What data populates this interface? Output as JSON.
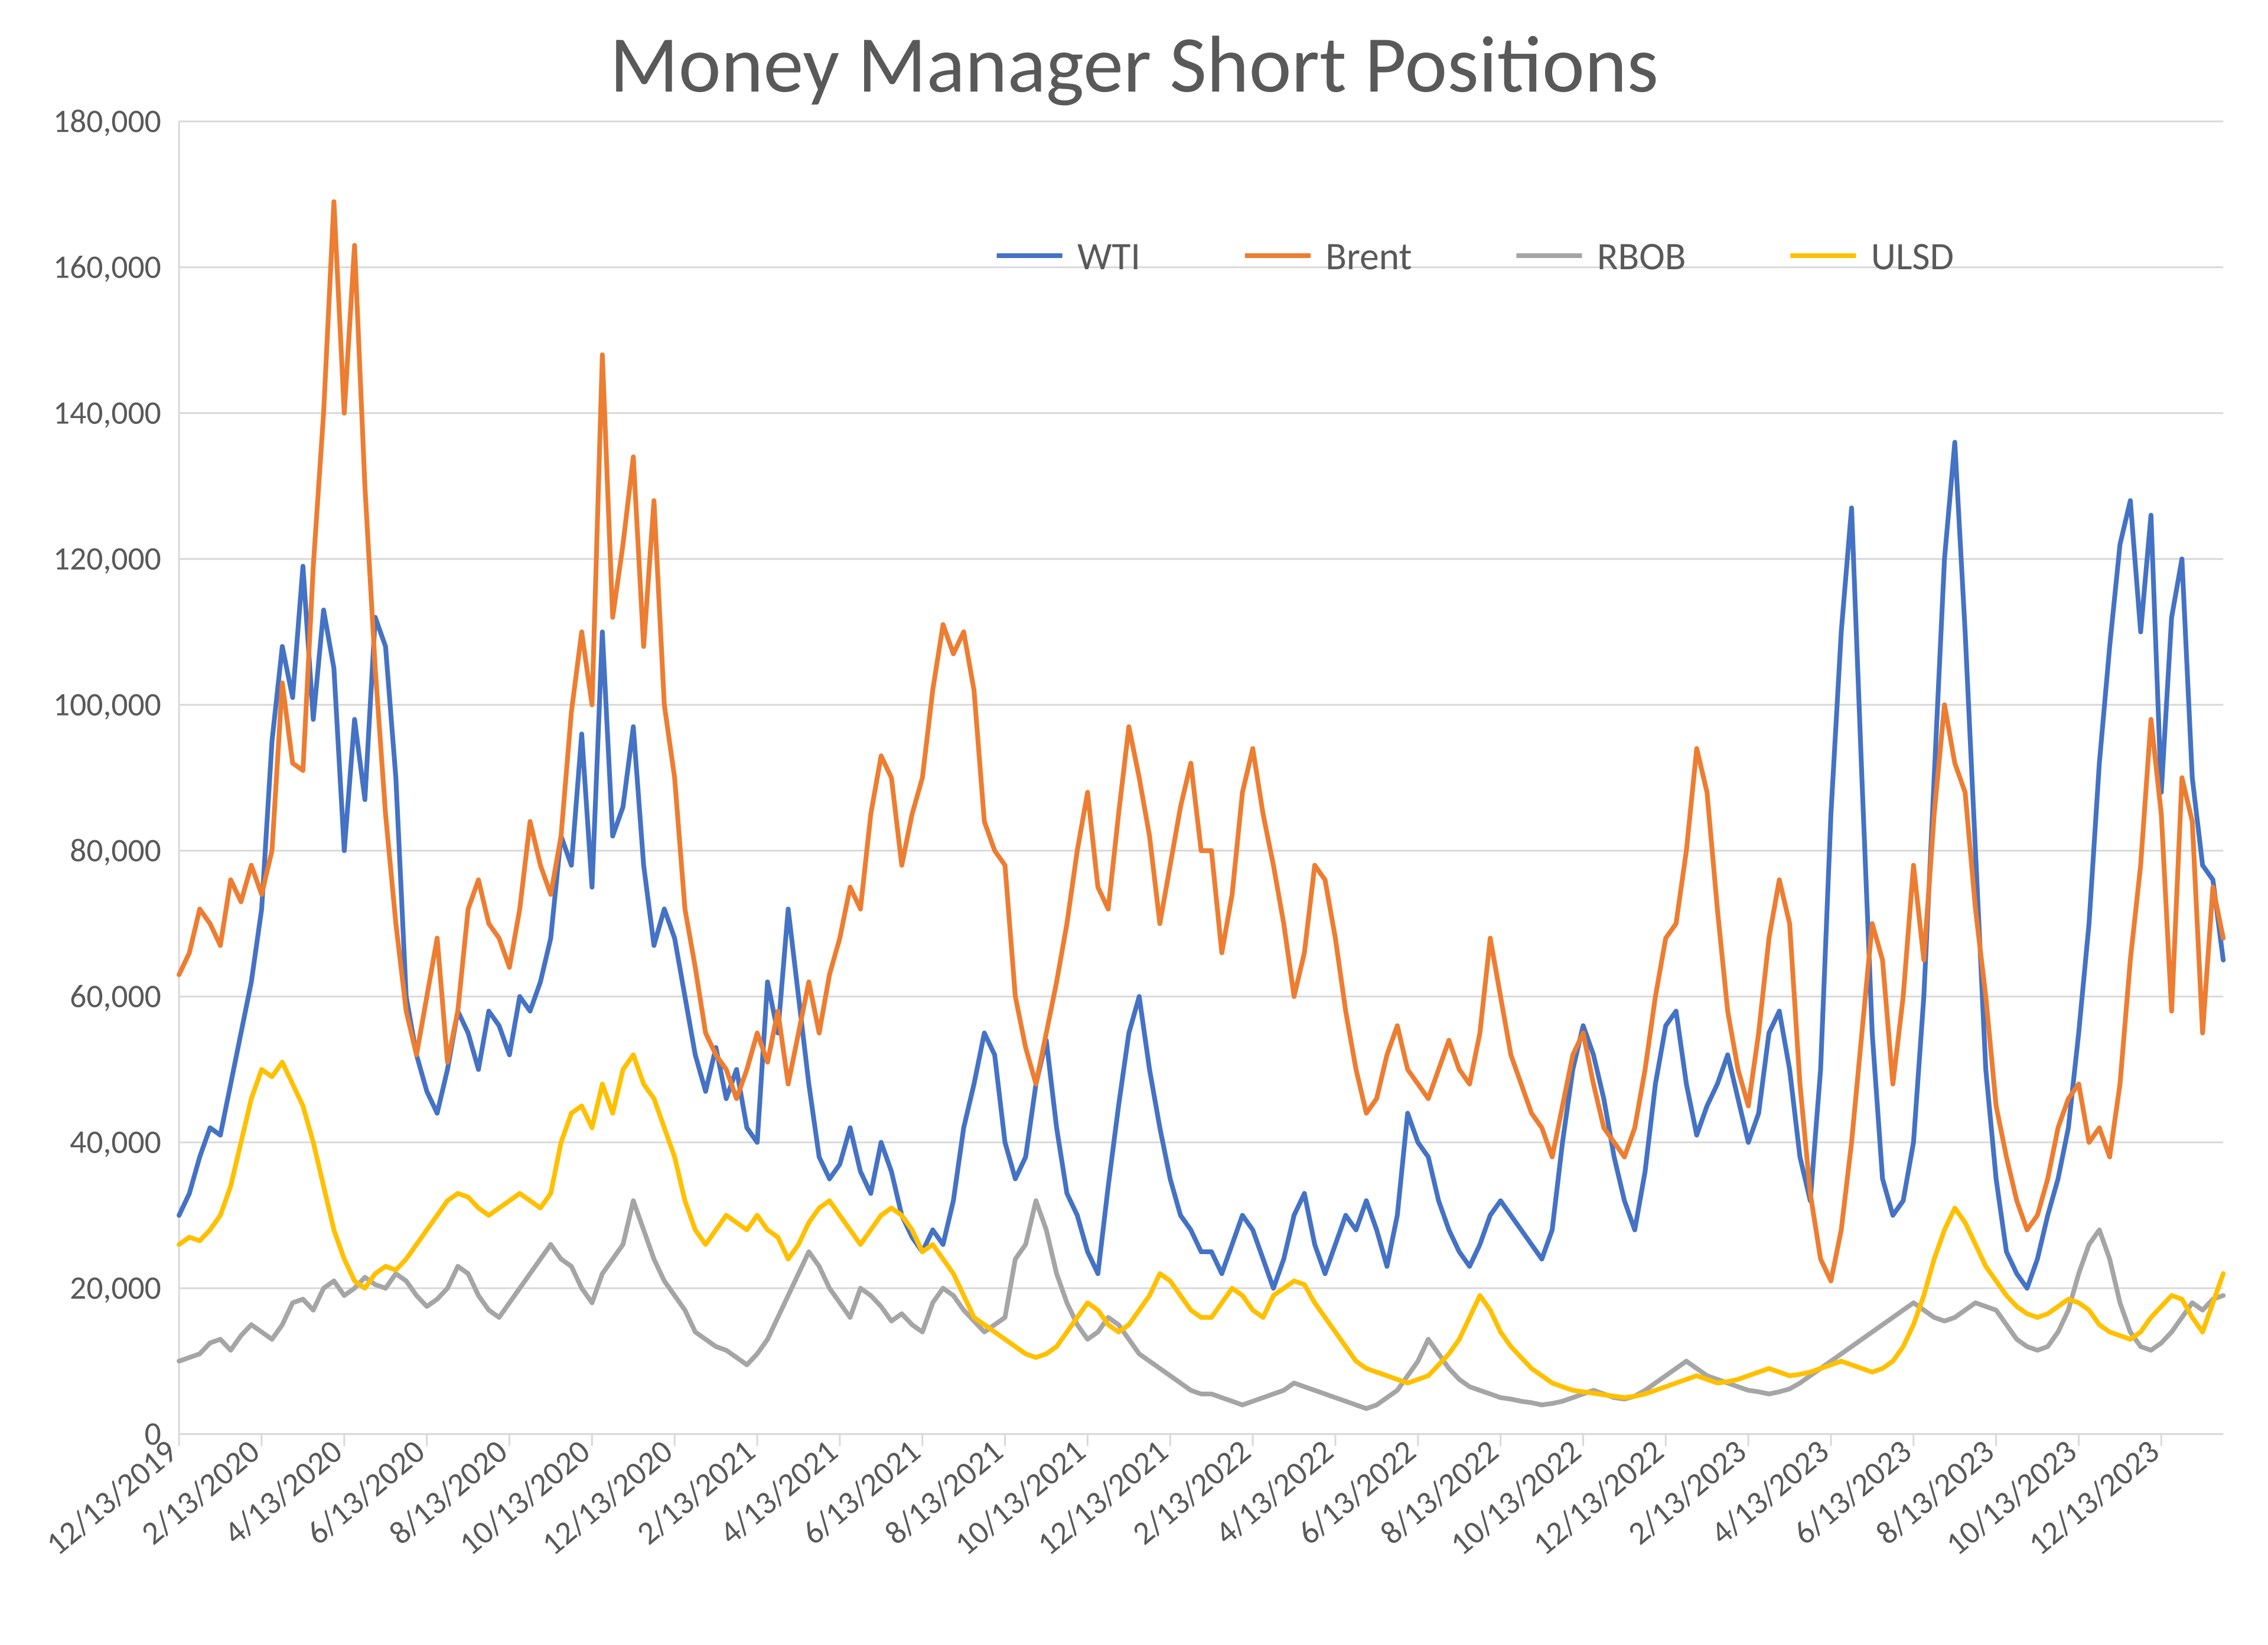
{
  "chart": {
    "type": "line",
    "title": "Money Manager Short Positions",
    "title_fontsize": 54,
    "title_color": "#595959",
    "background_color": "#ffffff",
    "plot_border_color": "#d9d9d9",
    "grid_color": "#d9d9d9",
    "axis_label_color": "#595959",
    "axis_fontsize": 22,
    "line_width": 3.2,
    "y": {
      "min": 0,
      "max": 180000,
      "tick_step": 20000,
      "ticks": [
        0,
        20000,
        40000,
        60000,
        80000,
        100000,
        120000,
        140000,
        160000,
        180000
      ]
    },
    "x": {
      "categories": [
        "12/13/2019",
        "2/13/2020",
        "4/13/2020",
        "6/13/2020",
        "8/13/2020",
        "10/13/2020",
        "12/13/2020",
        "2/13/2021",
        "4/13/2021",
        "6/13/2021",
        "8/13/2021",
        "10/13/2021",
        "12/13/2021",
        "2/13/2022",
        "4/13/2022",
        "6/13/2022",
        "8/13/2022",
        "10/13/2022",
        "12/13/2022",
        "2/13/2023",
        "4/13/2023",
        "6/13/2023",
        "8/13/2023",
        "10/13/2023",
        "12/13/2023"
      ],
      "points_per_label_gap": 8,
      "trailing_points_after_last_label": 6
    },
    "legend": {
      "position": "top-right-inside",
      "fontsize": 26,
      "items": [
        {
          "key": "WTI",
          "color": "#4472c4"
        },
        {
          "key": "Brent",
          "color": "#ed7d31"
        },
        {
          "key": "RBOB",
          "color": "#a5a5a5"
        },
        {
          "key": "ULSD",
          "color": "#ffc000"
        }
      ]
    },
    "series": {
      "WTI": {
        "color": "#4472c4",
        "values": [
          30000,
          33000,
          38000,
          42000,
          41000,
          48000,
          55000,
          62000,
          72000,
          95000,
          108000,
          101000,
          119000,
          98000,
          113000,
          105000,
          80000,
          98000,
          87000,
          112000,
          108000,
          90000,
          60000,
          52000,
          47000,
          44000,
          50000,
          58000,
          55000,
          50000,
          58000,
          56000,
          52000,
          60000,
          58000,
          62000,
          68000,
          82000,
          78000,
          96000,
          75000,
          110000,
          82000,
          86000,
          97000,
          78000,
          67000,
          72000,
          68000,
          60000,
          52000,
          47000,
          53000,
          46000,
          50000,
          42000,
          40000,
          62000,
          55000,
          72000,
          60000,
          48000,
          38000,
          35000,
          37000,
          42000,
          36000,
          33000,
          40000,
          36000,
          30000,
          27000,
          25000,
          28000,
          26000,
          32000,
          42000,
          48000,
          55000,
          52000,
          40000,
          35000,
          38000,
          48000,
          54000,
          42000,
          33000,
          30000,
          25000,
          22000,
          34000,
          45000,
          55000,
          60000,
          50000,
          42000,
          35000,
          30000,
          28000,
          25000,
          22000,
          26000,
          30000,
          28000,
          24000,
          20000,
          24000,
          30000,
          33000,
          26000,
          22000,
          26000,
          30000,
          28000,
          32000,
          28000,
          23000,
          30000,
          44000,
          40000,
          38000,
          32000,
          28000,
          25000,
          23000,
          26000,
          30000,
          32000,
          30000,
          28000,
          26000,
          24000,
          28000,
          40000,
          50000,
          56000,
          52000,
          46000,
          38000,
          32000,
          28000,
          36000,
          48000,
          56000,
          58000,
          48000,
          41000,
          45000,
          48000,
          52000,
          46000,
          40000,
          44000,
          55000,
          58000,
          50000,
          38000,
          32000,
          50000,
          85000,
          110000,
          127000,
          90000,
          55000,
          35000,
          30000,
          32000,
          40000,
          60000,
          90000,
          120000,
          136000,
          110000,
          80000,
          50000,
          35000,
          25000,
          22000,
          20000,
          24000,
          30000,
          35000,
          42000,
          55000,
          70000,
          92000,
          108000,
          122000,
          128000,
          110000,
          126000,
          88000,
          112000,
          120000,
          90000,
          78000,
          76000,
          65000
        ]
      },
      "Brent": {
        "color": "#ed7d31",
        "values": [
          63000,
          66000,
          72000,
          70000,
          67000,
          76000,
          73000,
          78000,
          74000,
          80000,
          103000,
          92000,
          91000,
          119000,
          140000,
          169000,
          140000,
          163000,
          130000,
          105000,
          85000,
          70000,
          58000,
          52000,
          60000,
          68000,
          51000,
          58000,
          72000,
          76000,
          70000,
          68000,
          64000,
          72000,
          84000,
          78000,
          74000,
          82000,
          99000,
          110000,
          100000,
          148000,
          112000,
          122000,
          134000,
          108000,
          128000,
          100000,
          90000,
          72000,
          64000,
          55000,
          52000,
          50000,
          46000,
          50000,
          55000,
          51000,
          58000,
          48000,
          55000,
          62000,
          55000,
          63000,
          68000,
          75000,
          72000,
          85000,
          93000,
          90000,
          78000,
          85000,
          90000,
          102000,
          111000,
          107000,
          110000,
          102000,
          84000,
          80000,
          78000,
          60000,
          53000,
          48000,
          55000,
          62000,
          70000,
          80000,
          88000,
          75000,
          72000,
          85000,
          97000,
          90000,
          82000,
          70000,
          78000,
          86000,
          92000,
          80000,
          66000,
          74000,
          88000,
          94000,
          85000,
          78000,
          70000,
          60000,
          66000,
          78000,
          76000,
          68000,
          58000,
          50000,
          44000,
          46000,
          52000,
          56000,
          50000,
          48000,
          46000,
          50000,
          54000,
          50000,
          48000,
          55000,
          68000,
          60000,
          52000,
          48000,
          44000,
          42000,
          38000,
          45000,
          52000,
          55000,
          48000,
          42000,
          40000,
          38000,
          42000,
          50000,
          60000,
          68000,
          70000,
          80000,
          94000,
          88000,
          72000,
          58000,
          50000,
          45000,
          55000,
          68000,
          76000,
          70000,
          48000,
          33000,
          24000,
          21000,
          28000,
          40000,
          55000,
          70000,
          65000,
          48000,
          60000,
          78000,
          65000,
          85000,
          100000,
          92000,
          88000,
          72000,
          60000,
          45000,
          38000,
          32000,
          28000,
          30000,
          35000,
          42000,
          46000,
          48000,
          40000,
          42000,
          38000,
          48000,
          65000,
          78000,
          98000,
          85000,
          58000,
          90000,
          84000,
          55000,
          75000,
          68000
        ]
      },
      "RBOB": {
        "color": "#a5a5a5",
        "values": [
          10000,
          10500,
          11000,
          12500,
          13000,
          11500,
          13500,
          15000,
          14000,
          13000,
          15000,
          18000,
          18500,
          17000,
          20000,
          21000,
          19000,
          20000,
          21500,
          20500,
          20000,
          22000,
          21000,
          19000,
          17500,
          18500,
          20000,
          23000,
          22000,
          19000,
          17000,
          16000,
          18000,
          20000,
          22000,
          24000,
          26000,
          24000,
          23000,
          20000,
          18000,
          22000,
          24000,
          26000,
          32000,
          28000,
          24000,
          21000,
          19000,
          17000,
          14000,
          13000,
          12000,
          11500,
          10500,
          9500,
          11000,
          13000,
          16000,
          19000,
          22000,
          25000,
          23000,
          20000,
          18000,
          16000,
          20000,
          19000,
          17500,
          15500,
          16500,
          15000,
          14000,
          18000,
          20000,
          19000,
          17000,
          15500,
          14000,
          15000,
          16000,
          24000,
          26000,
          32000,
          28000,
          22000,
          18000,
          15000,
          13000,
          14000,
          16000,
          15000,
          13000,
          11000,
          10000,
          9000,
          8000,
          7000,
          6000,
          5500,
          5000,
          4500,
          4000,
          4500,
          5000,
          5500,
          6000,
          7000,
          6500,
          6000,
          5500,
          5000,
          4500,
          4000,
          3500,
          4000,
          5000,
          6000,
          8000,
          10000,
          13000,
          11000,
          9000,
          7500,
          6500,
          6000,
          5500,
          5000,
          4800,
          4500,
          4300,
          4000,
          4200,
          4500,
          5000,
          5500,
          6000,
          5500,
          5000,
          4800,
          5200,
          6000,
          7000,
          8000,
          9000,
          10000,
          9000,
          8000,
          7500,
          7000,
          6500,
          6000,
          5800,
          5500,
          5800,
          6200,
          7000,
          8000,
          9000,
          10000,
          11000,
          12000,
          13000,
          14000,
          15000,
          16000,
          17000,
          18000,
          17000,
          16000,
          15500,
          16000,
          17000,
          18000,
          17500,
          17000,
          15000,
          13000,
          12000,
          11500,
          12000,
          14000,
          17000,
          22000,
          26000,
          28000,
          24000,
          18000,
          14000,
          12000,
          11500,
          12500,
          14000,
          16000,
          18000,
          17000,
          18500,
          19000
        ]
      },
      "ULSD": {
        "color": "#ffc000",
        "values": [
          26000,
          27000,
          26500,
          28000,
          30000,
          34000,
          40000,
          46000,
          50000,
          49000,
          51000,
          48000,
          45000,
          40000,
          34000,
          28000,
          24000,
          21000,
          20000,
          22000,
          23000,
          22500,
          24000,
          26000,
          28000,
          30000,
          32000,
          33000,
          32500,
          31000,
          30000,
          31000,
          32000,
          33000,
          32000,
          31000,
          33000,
          40000,
          44000,
          45000,
          42000,
          48000,
          44000,
          50000,
          52000,
          48000,
          46000,
          42000,
          38000,
          32000,
          28000,
          26000,
          28000,
          30000,
          29000,
          28000,
          30000,
          28000,
          27000,
          24000,
          26000,
          29000,
          31000,
          32000,
          30000,
          28000,
          26000,
          28000,
          30000,
          31000,
          30000,
          28000,
          25000,
          26000,
          24000,
          22000,
          19000,
          16000,
          15000,
          14000,
          13000,
          12000,
          11000,
          10500,
          11000,
          12000,
          14000,
          16000,
          18000,
          17000,
          15000,
          14000,
          15000,
          17000,
          19000,
          22000,
          21000,
          19000,
          17000,
          16000,
          18000,
          20000,
          19000,
          17000,
          16000,
          19000,
          20000,
          21000,
          20500,
          18000,
          16000,
          14000,
          12000,
          10000,
          9000,
          8500,
          8000,
          7500,
          7000,
          7500,
          8000,
          9500,
          11000,
          13000,
          16000,
          19000,
          17000,
          14000,
          12000,
          10500,
          9000,
          8000,
          7000,
          6500,
          6000,
          5800,
          5600,
          5400,
          5200,
          5000,
          5200,
          5500,
          6000,
          6500,
          7000,
          7500,
          8000,
          7500,
          7000,
          7200,
          7500,
          8000,
          8500,
          9000,
          8500,
          8000,
          8200,
          8500,
          9000,
          9500,
          10000,
          9500,
          9000,
          8500,
          9000,
          10000,
          12000,
          15000,
          19000,
          24000,
          28000,
          31000,
          29000,
          26000,
          23000,
          21000,
          19000,
          17500,
          16500,
          16000,
          16500,
          17500,
          18500,
          18000,
          17000,
          15000,
          14000,
          13500,
          13000,
          14000,
          16000,
          17500,
          19000,
          18500,
          16000,
          14000,
          18000,
          22000
        ]
      }
    }
  }
}
